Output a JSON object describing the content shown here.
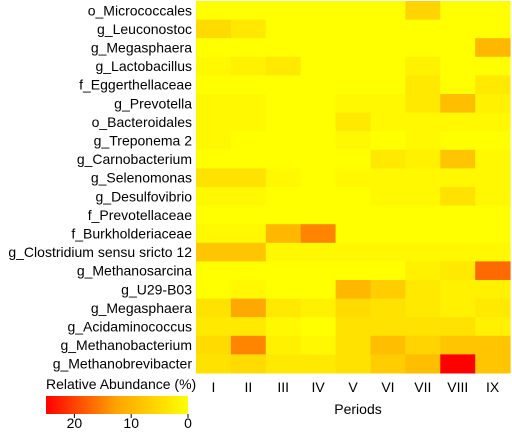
{
  "chart_data": {
    "type": "heatmap",
    "title": "",
    "xlabel": "Periods",
    "ylabel": "",
    "x": [
      "I",
      "II",
      "III",
      "IV",
      "V",
      "VI",
      "VII",
      "VIII",
      "IX"
    ],
    "y": [
      "o_Micrococcales",
      "g_Leuconostoc",
      "g_Megasphaera",
      "g_Lactobacillus",
      "f_Eggerthellaceae",
      "g_Prevotella",
      "o_Bacteroidales",
      "g_Treponema 2",
      "g_Carnobacterium",
      "g_Selenomonas",
      "g_Desulfovibrio",
      "f_Prevotellaceae",
      "f_Burkholderiaceae",
      "g_Clostridium sensu sricto 12",
      "g_Methanosarcina",
      "g_U29-B03",
      "g_Megasphaera",
      "g_Acidaminococcus",
      "g_Methanobacterium",
      "g_Methanobrevibacter"
    ],
    "values": [
      [
        0,
        0,
        0,
        0,
        0,
        0,
        6,
        0,
        0
      ],
      [
        5,
        3,
        0,
        0,
        0,
        0,
        0,
        0,
        0
      ],
      [
        0,
        0,
        0,
        0,
        0,
        0,
        0,
        0,
        10
      ],
      [
        1,
        2,
        3,
        0,
        0,
        0,
        2,
        0,
        0
      ],
      [
        0,
        0,
        0,
        0,
        0,
        0,
        3,
        0,
        3
      ],
      [
        1,
        1,
        0,
        0,
        1,
        1,
        3,
        9,
        2
      ],
      [
        1,
        1,
        0,
        0,
        3,
        1,
        1,
        1,
        1
      ],
      [
        1,
        0,
        0,
        0,
        1,
        0,
        1,
        0,
        0
      ],
      [
        0,
        0,
        0,
        0,
        0,
        3,
        2,
        8,
        1
      ],
      [
        4,
        4,
        1,
        0,
        1,
        1,
        1,
        1,
        1
      ],
      [
        1,
        1,
        0,
        0,
        0,
        1,
        1,
        4,
        1
      ],
      [
        0,
        0,
        0,
        0,
        0,
        0,
        0,
        0,
        0
      ],
      [
        1,
        1,
        10,
        15,
        0,
        0,
        0,
        0,
        0
      ],
      [
        8,
        8,
        1,
        1,
        1,
        1,
        1,
        1,
        1
      ],
      [
        0,
        0,
        0,
        0,
        0,
        0,
        2,
        3,
        17
      ],
      [
        0,
        1,
        0,
        0,
        10,
        7,
        3,
        2,
        2
      ],
      [
        4,
        12,
        3,
        2,
        5,
        4,
        3,
        2,
        3
      ],
      [
        3,
        3,
        1,
        0,
        4,
        4,
        4,
        4,
        2
      ],
      [
        5,
        15,
        2,
        1,
        4,
        9,
        6,
        8,
        8
      ],
      [
        4,
        5,
        3,
        3,
        4,
        7,
        9,
        25,
        8
      ]
    ],
    "colorbar": {
      "title": "Relative Abundance (%)",
      "range": [
        25,
        0
      ],
      "ticks": [
        20,
        10,
        0
      ],
      "colors": [
        "#ff0000",
        "#ffa500",
        "#ffff00"
      ]
    },
    "grid": false,
    "legend_placement": "bottom-left"
  }
}
